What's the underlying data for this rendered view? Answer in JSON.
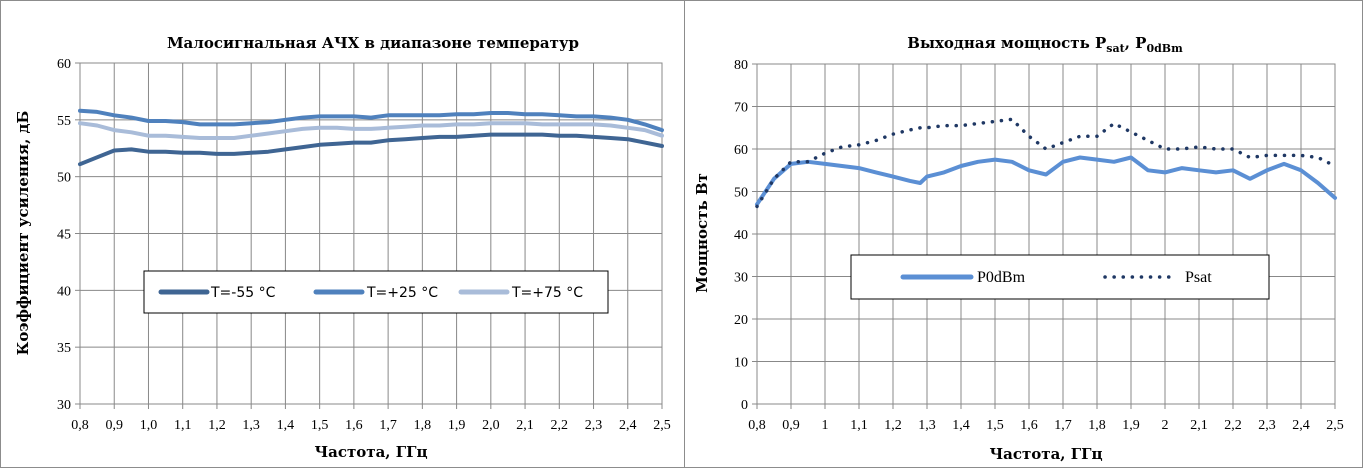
{
  "chart_data": [
    {
      "type": "line",
      "title": "Малосигнальная АЧХ в диапазоне температур",
      "xlabel": "Частота, ГГц",
      "ylabel": "Коэффициент усиления, дБ",
      "xlim": [
        0.8,
        2.5
      ],
      "ylim": [
        30,
        60
      ],
      "xticks": [
        "0,8",
        "0,9",
        "1,0",
        "1,1",
        "1,2",
        "1,3",
        "1,4",
        "1,5",
        "1,6",
        "1,7",
        "1,8",
        "1,9",
        "2,0",
        "2,1",
        "2,2",
        "2,3",
        "2,4",
        "2,5"
      ],
      "yticks": [
        "30",
        "35",
        "40",
        "45",
        "50",
        "55",
        "60"
      ],
      "grid": true,
      "legend_position": "center",
      "x": [
        0.8,
        0.85,
        0.9,
        0.95,
        1.0,
        1.05,
        1.1,
        1.15,
        1.2,
        1.25,
        1.3,
        1.35,
        1.4,
        1.45,
        1.5,
        1.55,
        1.6,
        1.65,
        1.7,
        1.75,
        1.8,
        1.85,
        1.9,
        1.95,
        2.0,
        2.05,
        2.1,
        2.15,
        2.2,
        2.25,
        2.3,
        2.35,
        2.4,
        2.45,
        2.5
      ],
      "series": [
        {
          "name": "T=-55 °C",
          "color": "#3f6593",
          "values": [
            51.1,
            51.7,
            52.3,
            52.4,
            52.2,
            52.2,
            52.1,
            52.1,
            52.0,
            52.0,
            52.1,
            52.2,
            52.4,
            52.6,
            52.8,
            52.9,
            53.0,
            53.0,
            53.2,
            53.3,
            53.4,
            53.5,
            53.5,
            53.6,
            53.7,
            53.7,
            53.7,
            53.7,
            53.6,
            53.6,
            53.5,
            53.4,
            53.3,
            53.0,
            52.7
          ]
        },
        {
          "name": "T=+25 °C",
          "color": "#4f81bd",
          "values": [
            55.8,
            55.7,
            55.4,
            55.2,
            54.9,
            54.9,
            54.8,
            54.6,
            54.6,
            54.6,
            54.7,
            54.8,
            55.0,
            55.2,
            55.3,
            55.3,
            55.3,
            55.2,
            55.4,
            55.4,
            55.4,
            55.4,
            55.5,
            55.5,
            55.6,
            55.6,
            55.5,
            55.5,
            55.4,
            55.3,
            55.3,
            55.2,
            55.0,
            54.6,
            54.1
          ]
        },
        {
          "name": "T=+75 °C",
          "color": "#a9bcd9",
          "values": [
            54.7,
            54.5,
            54.1,
            53.9,
            53.6,
            53.6,
            53.5,
            53.4,
            53.4,
            53.4,
            53.6,
            53.8,
            54.0,
            54.2,
            54.3,
            54.3,
            54.2,
            54.2,
            54.3,
            54.4,
            54.5,
            54.5,
            54.6,
            54.6,
            54.7,
            54.7,
            54.7,
            54.6,
            54.6,
            54.6,
            54.6,
            54.5,
            54.3,
            54.1,
            53.6
          ]
        }
      ]
    },
    {
      "type": "line",
      "title_main": "Выходная мощность P",
      "title_sub1": "sat",
      "title_sep": ", P",
      "title_sub2": "0dBm",
      "xlabel": "Частота, ГГц",
      "ylabel": "Мощность Вт",
      "xlim": [
        0.8,
        2.5
      ],
      "ylim": [
        0,
        80
      ],
      "xticks": [
        "0,8",
        "0,9",
        "1",
        "1,1",
        "1,2",
        "1,3",
        "1,4",
        "1,5",
        "1,6",
        "1,7",
        "1,8",
        "1,9",
        "2",
        "2,1",
        "2,2",
        "2,3",
        "2,4",
        "2,5"
      ],
      "yticks": [
        "0",
        "10",
        "20",
        "30",
        "40",
        "50",
        "60",
        "70",
        "80"
      ],
      "grid": true,
      "legend_position": "center",
      "x": [
        0.8,
        0.85,
        0.9,
        0.95,
        1.0,
        1.05,
        1.1,
        1.15,
        1.2,
        1.25,
        1.28,
        1.3,
        1.35,
        1.4,
        1.45,
        1.5,
        1.55,
        1.6,
        1.65,
        1.7,
        1.75,
        1.8,
        1.85,
        1.9,
        1.95,
        2.0,
        2.05,
        2.1,
        2.15,
        2.2,
        2.25,
        2.3,
        2.35,
        2.4,
        2.45,
        2.5
      ],
      "series": [
        {
          "name": "P0dBm",
          "color": "#5b8fd4",
          "style": "solid",
          "values": [
            47.0,
            53.0,
            56.5,
            57.0,
            56.5,
            56.0,
            55.5,
            54.5,
            53.5,
            52.5,
            52.0,
            53.5,
            54.5,
            56.0,
            57.0,
            57.5,
            57.0,
            55.0,
            54.0,
            57.0,
            58.0,
            57.5,
            57.0,
            58.0,
            55.0,
            54.5,
            55.5,
            55.0,
            54.5,
            55.0,
            53.0,
            55.0,
            56.5,
            55.0,
            52.0,
            48.5
          ]
        },
        {
          "name": "Psat",
          "color": "#1f3864",
          "style": "dotted",
          "values": [
            46.5,
            53.0,
            57.0,
            57.0,
            59.0,
            60.5,
            61.0,
            62.0,
            63.5,
            64.5,
            65.0,
            65.0,
            65.5,
            65.5,
            66.0,
            66.5,
            67.0,
            63.0,
            60.0,
            61.5,
            63.0,
            63.0,
            66.0,
            64.0,
            62.0,
            60.0,
            60.0,
            60.5,
            60.0,
            60.0,
            58.0,
            58.5,
            58.5,
            58.5,
            58.0,
            56.0
          ]
        }
      ]
    }
  ]
}
